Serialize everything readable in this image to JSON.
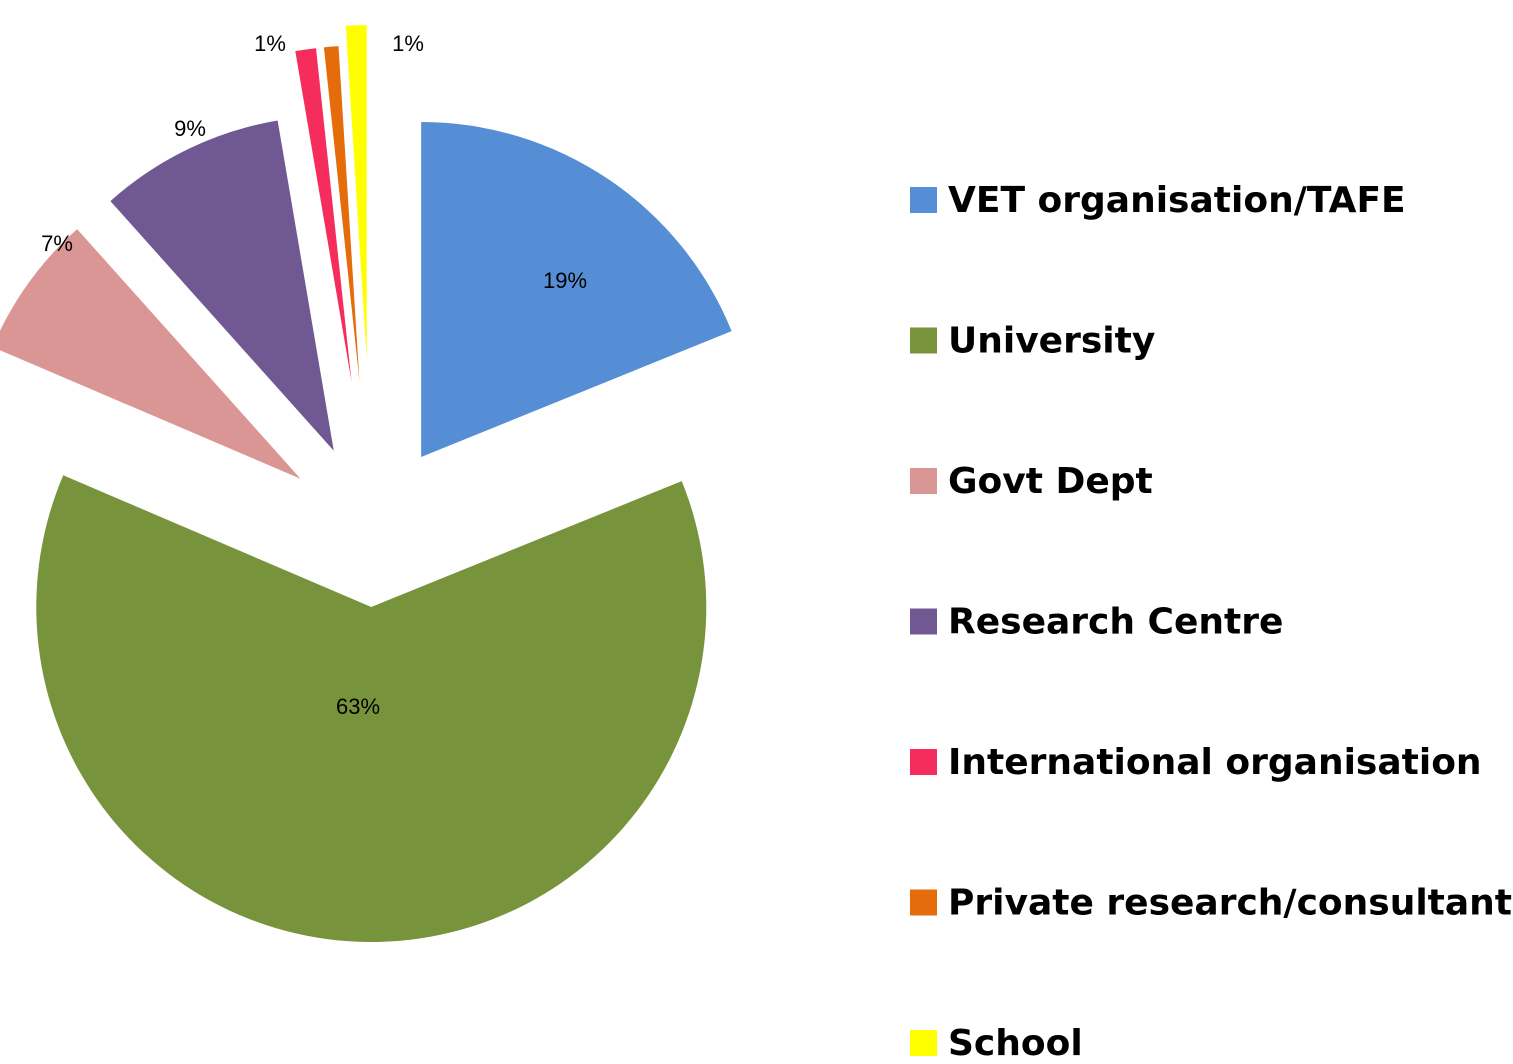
{
  "chart_data": {
    "type": "pie",
    "categories": [
      "VET organisation/TAFE",
      "University",
      "Govt Dept",
      "Research Centre",
      "International organisation",
      "Private research/consultant",
      "School"
    ],
    "values": [
      19,
      63,
      7,
      9,
      1,
      0.7,
      1
    ],
    "value_labels": [
      "19%",
      "63%",
      "7%",
      "9%",
      "1%",
      null,
      "1%"
    ],
    "colors": [
      "#558ed5",
      "#77933c",
      "#d99694",
      "#705893",
      "#f52d5c",
      "#e46c0a",
      "#ffff00"
    ],
    "legend": "right"
  }
}
